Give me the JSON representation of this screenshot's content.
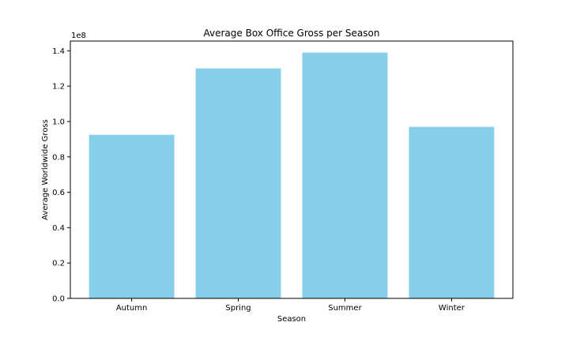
{
  "chart_data": {
    "type": "bar",
    "title": "Average Box Office Gross per Season",
    "xlabel": "Season",
    "ylabel": "Average Worldwide Gross",
    "y_offset_label": "1e8",
    "categories": [
      "Autumn",
      "Spring",
      "Summer",
      "Winter"
    ],
    "values": [
      92500000,
      130000000,
      139000000,
      97000000
    ],
    "ylim": [
      0,
      145500000
    ],
    "y_ticks": [
      0,
      20000000,
      40000000,
      60000000,
      80000000,
      100000000,
      120000000,
      140000000
    ],
    "y_tick_labels": [
      "0.0",
      "0.2",
      "0.4",
      "0.6",
      "0.8",
      "1.0",
      "1.2",
      "1.4"
    ],
    "bar_color": "#87ceeb",
    "grid": false,
    "legend": "none"
  }
}
